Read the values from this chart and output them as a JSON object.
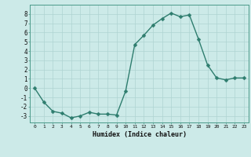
{
  "x": [
    0,
    1,
    2,
    3,
    4,
    5,
    6,
    7,
    8,
    9,
    10,
    11,
    12,
    13,
    14,
    15,
    16,
    17,
    18,
    19,
    20,
    21,
    22,
    23
  ],
  "y": [
    0,
    -1.5,
    -2.5,
    -2.7,
    -3.2,
    -3.0,
    -2.6,
    -2.8,
    -2.8,
    -2.9,
    -0.3,
    4.7,
    5.7,
    6.8,
    7.5,
    8.1,
    7.7,
    7.9,
    5.3,
    2.5,
    1.1,
    0.9,
    1.1,
    1.1
  ],
  "line_color": "#2e7d6e",
  "bg_color": "#cceae8",
  "grid_color": "#aed4d2",
  "xlabel": "Humidex (Indice chaleur)",
  "xlim": [
    -0.5,
    23.5
  ],
  "ylim": [
    -3.7,
    9.0
  ],
  "yticks": [
    -3,
    -2,
    -1,
    0,
    1,
    2,
    3,
    4,
    5,
    6,
    7,
    8
  ],
  "xticks": [
    0,
    1,
    2,
    3,
    4,
    5,
    6,
    7,
    8,
    9,
    10,
    11,
    12,
    13,
    14,
    15,
    16,
    17,
    18,
    19,
    20,
    21,
    22,
    23
  ],
  "markersize": 2.5,
  "linewidth": 1.0
}
